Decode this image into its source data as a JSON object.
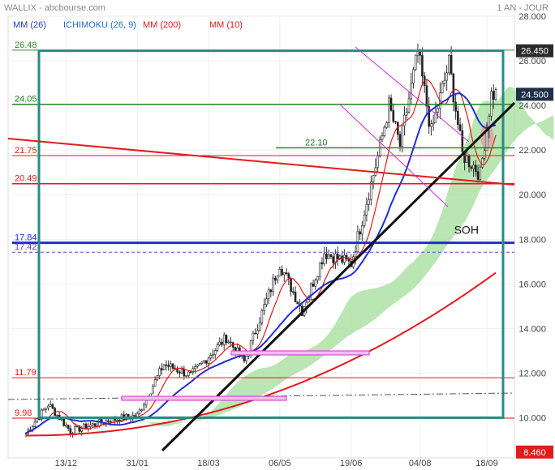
{
  "header": {
    "title": "WALLIX - abcbourse.com",
    "period": "1 AN - JOUR"
  },
  "legend": [
    {
      "label": "MM (26)",
      "color": "#1f3fcf"
    },
    {
      "label": "ICHIMOKU (26, 9)",
      "color": "#1f6fd0"
    },
    {
      "label": "MM (200)",
      "color": "#e21b1b"
    },
    {
      "label": "MM (10)",
      "color": "#e21b1b"
    }
  ],
  "chart_data": {
    "type": "line",
    "yaxis": {
      "min": 8.2,
      "max": 28.0,
      "ticks": [
        10,
        12,
        14,
        16,
        18,
        20,
        22,
        24,
        26,
        28
      ],
      "tick_labels": [
        "10.000",
        "12.000",
        "14.000",
        "16.000",
        "18.000",
        "20.000",
        "22.000",
        "24.000",
        "26.000",
        "28.000"
      ]
    },
    "xaxis": {
      "ticks": [
        {
          "label": "13/12",
          "i": 18
        },
        {
          "label": "31/01",
          "i": 50
        },
        {
          "label": "18/03",
          "i": 82
        },
        {
          "label": "06/05",
          "i": 114
        },
        {
          "label": "19/06",
          "i": 146
        },
        {
          "label": "04/08",
          "i": 177
        },
        {
          "label": "18/09",
          "i": 207
        }
      ],
      "n": 212
    },
    "price_badges": [
      {
        "label": "26.450",
        "value": 26.45,
        "color": "#2b2b2b"
      },
      {
        "label": "24.500",
        "value": 24.5,
        "color": "#1e2f48"
      },
      {
        "label": "8.460",
        "value": 8.46,
        "color": "#e21b1b"
      }
    ],
    "level_lines": [
      {
        "label": "26.48",
        "value": 26.48,
        "color": "#2e8b2e"
      },
      {
        "label": "24.05",
        "value": 24.05,
        "color": "#1f7a1f"
      },
      {
        "label": "22.10",
        "value": 22.1,
        "color": "#1f7a1f"
      },
      {
        "label": "21.75",
        "value": 21.75,
        "color": "#e21b1b"
      },
      {
        "label": "20.49",
        "value": 20.49,
        "color": "#e21b1b"
      },
      {
        "label": "17.84",
        "value": 17.84,
        "color": "#1f2fd0"
      },
      {
        "label": "17.42",
        "value": 17.42,
        "color": "#6a3fd0"
      },
      {
        "label": "11.79",
        "value": 11.79,
        "color": "#e21b1b"
      },
      {
        "label": "9.98",
        "value": 9.98,
        "color": "#e21b1b"
      }
    ],
    "annotations": [
      {
        "label": "SOH",
        "i": 193,
        "value": 18.25
      }
    ],
    "key_points": [
      {
        "i": 0,
        "value": 9.3
      },
      {
        "i": 10,
        "value": 10.6
      },
      {
        "i": 20,
        "value": 9.4
      },
      {
        "i": 38,
        "value": 9.9
      },
      {
        "i": 50,
        "value": 10.1
      },
      {
        "i": 62,
        "value": 12.4
      },
      {
        "i": 74,
        "value": 11.9
      },
      {
        "i": 90,
        "value": 13.6
      },
      {
        "i": 98,
        "value": 12.5
      },
      {
        "i": 114,
        "value": 16.9
      },
      {
        "i": 124,
        "value": 14.8
      },
      {
        "i": 134,
        "value": 17.4
      },
      {
        "i": 146,
        "value": 16.9
      },
      {
        "i": 158,
        "value": 21.7
      },
      {
        "i": 163,
        "value": 24.0
      },
      {
        "i": 168,
        "value": 22.2
      },
      {
        "i": 176,
        "value": 26.4
      },
      {
        "i": 182,
        "value": 22.8
      },
      {
        "i": 190,
        "value": 25.9
      },
      {
        "i": 196,
        "value": 21.8
      },
      {
        "i": 201,
        "value": 21.3
      },
      {
        "i": 204,
        "value": 20.9
      },
      {
        "i": 209,
        "value": 24.5
      }
    ]
  }
}
